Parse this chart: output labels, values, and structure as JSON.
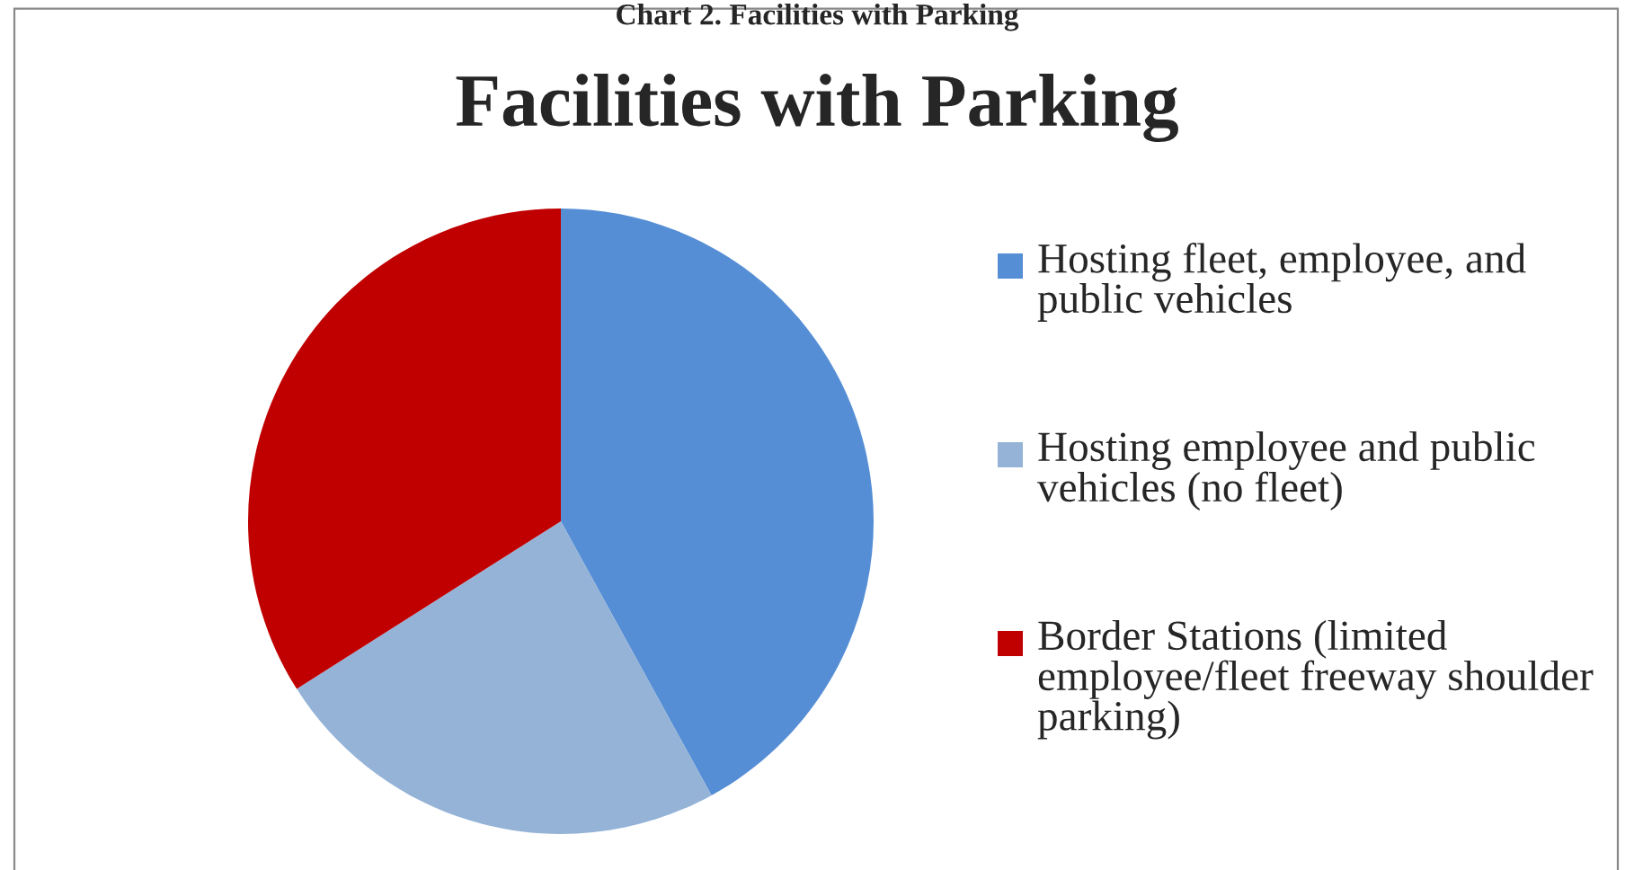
{
  "chart_data": {
    "type": "pie",
    "title": "Facilities with Parking",
    "annotations": [
      "Chart 2. Facilities with Parking"
    ],
    "categories": [
      "Hosting fleet, employee, and public vehicles",
      "Hosting employee and public vehicles (no fleet)",
      "Border Stations (limited employee/fleet freeway shoulder parking)"
    ],
    "values": [
      42,
      24,
      34
    ],
    "colors": [
      "#558ed5",
      "#95b3d7",
      "#c00000"
    ],
    "legend": "right"
  }
}
